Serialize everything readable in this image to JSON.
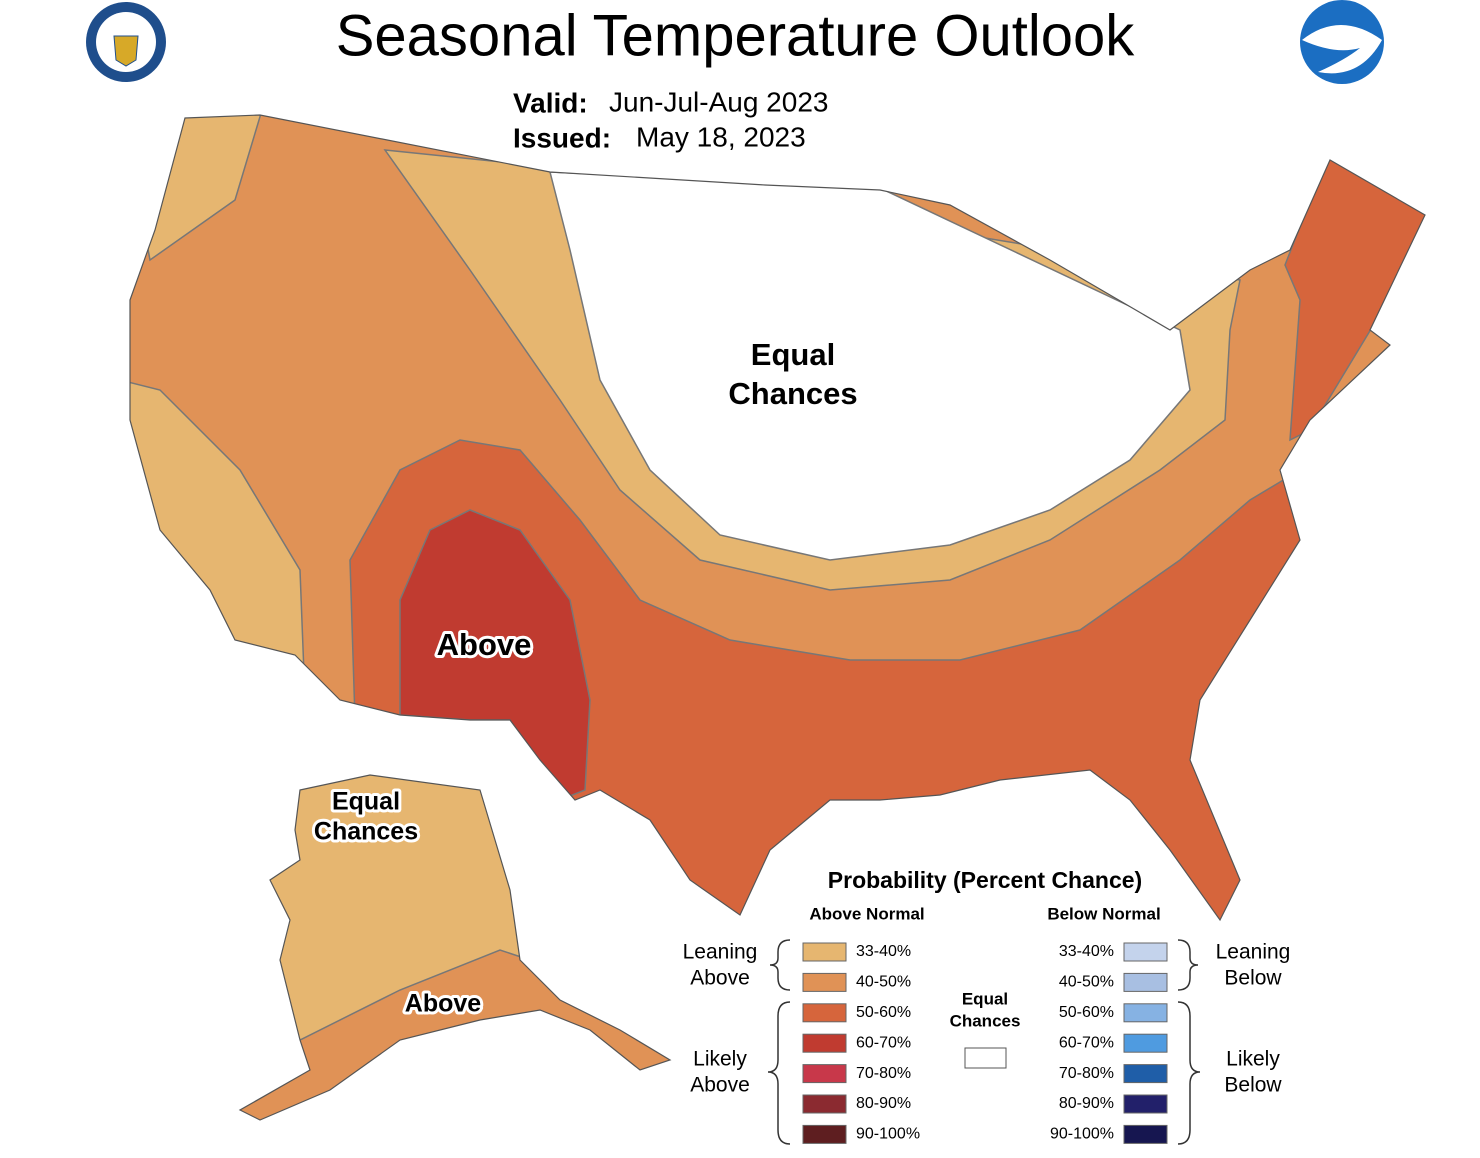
{
  "header": {
    "title": "Seasonal Temperature Outlook",
    "valid_label": "Valid:",
    "valid": "Jun-Jul-Aug 2023",
    "issued_label": "Issued:",
    "issued": "May 18, 2023"
  },
  "map_labels": {
    "conus_equal": [
      "Equal",
      "Chances"
    ],
    "conus_above": "Above",
    "alaska_equal": [
      "Equal",
      "Chances"
    ],
    "alaska_above": "Above"
  },
  "legend": {
    "title": "Probability (Percent Chance)",
    "above_header": "Above Normal",
    "below_header": "Below Normal",
    "above": [
      {
        "label": "33-40%",
        "color": "#e6b670"
      },
      {
        "label": "40-50%",
        "color": "#e09256"
      },
      {
        "label": "50-60%",
        "color": "#d6653c"
      },
      {
        "label": "60-70%",
        "color": "#c03b30"
      },
      {
        "label": "70-80%",
        "color": "#c8384a"
      },
      {
        "label": "80-90%",
        "color": "#8b2a30"
      },
      {
        "label": "90-100%",
        "color": "#5e1e20"
      }
    ],
    "below": [
      {
        "label": "33-40%",
        "color": "#c4d3ec"
      },
      {
        "label": "40-50%",
        "color": "#a8bfe2"
      },
      {
        "label": "50-60%",
        "color": "#86b2e3"
      },
      {
        "label": "60-70%",
        "color": "#4f9be0"
      },
      {
        "label": "70-80%",
        "color": "#1f5ea8"
      },
      {
        "label": "80-90%",
        "color": "#22206a"
      },
      {
        "label": "90-100%",
        "color": "#161650"
      }
    ],
    "equal": [
      "Equal",
      "Chances"
    ],
    "leaning_above": [
      "Leaning",
      "Above"
    ],
    "likely_above": [
      "Likely",
      "Above"
    ],
    "leaning_below": [
      "Leaning",
      "Below"
    ],
    "likely_below": [
      "Likely",
      "Below"
    ]
  }
}
